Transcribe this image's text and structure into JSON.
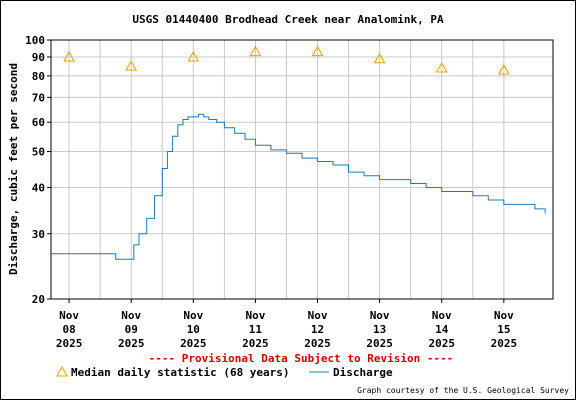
{
  "chart_data": {
    "type": "line",
    "title": "USGS 01440400 Brodhead Creek near Analomink, PA",
    "ylabel": "Discharge, cubic feet per second",
    "xlabel": "",
    "y_scale": "log",
    "ylim": [
      20,
      100
    ],
    "y_ticks": [
      20,
      30,
      40,
      50,
      60,
      70,
      80,
      90,
      100
    ],
    "x_ticks": [
      {
        "date": "2025-11-08",
        "label": [
          "Nov",
          "08",
          "2025"
        ]
      },
      {
        "date": "2025-11-09",
        "label": [
          "Nov",
          "09",
          "2025"
        ]
      },
      {
        "date": "2025-11-10",
        "label": [
          "Nov",
          "10",
          "2025"
        ]
      },
      {
        "date": "2025-11-11",
        "label": [
          "Nov",
          "11",
          "2025"
        ]
      },
      {
        "date": "2025-11-12",
        "label": [
          "Nov",
          "12",
          "2025"
        ]
      },
      {
        "date": "2025-11-13",
        "label": [
          "Nov",
          "13",
          "2025"
        ]
      },
      {
        "date": "2025-11-14",
        "label": [
          "Nov",
          "14",
          "2025"
        ]
      },
      {
        "date": "2025-11-15",
        "label": [
          "Nov",
          "15",
          "2025"
        ]
      }
    ],
    "xlim": [
      "2025-11-07T17:00",
      "2025-11-15T19:00"
    ],
    "grid": true,
    "legend_position": "bottom",
    "series": [
      {
        "name": "Median daily statistic (68 years)",
        "kind": "scatter",
        "marker": "triangle",
        "color": "#e8a000",
        "points": [
          {
            "x": "2025-11-08T00:00",
            "y": 90
          },
          {
            "x": "2025-11-09T00:00",
            "y": 85
          },
          {
            "x": "2025-11-10T00:00",
            "y": 90
          },
          {
            "x": "2025-11-11T00:00",
            "y": 93
          },
          {
            "x": "2025-11-12T00:00",
            "y": 93
          },
          {
            "x": "2025-11-13T00:00",
            "y": 89
          },
          {
            "x": "2025-11-14T00:00",
            "y": 84
          },
          {
            "x": "2025-11-15T00:00",
            "y": 83
          }
        ]
      },
      {
        "name": "Discharge",
        "kind": "line",
        "color": "#1f77b4",
        "points": [
          {
            "x": "2025-11-07T17:00",
            "y": 26.5
          },
          {
            "x": "2025-11-08T18:00",
            "y": 26.5
          },
          {
            "x": "2025-11-08T18:00",
            "y": 25.6
          },
          {
            "x": "2025-11-09T00:00",
            "y": 25.6
          },
          {
            "x": "2025-11-09T01:00",
            "y": 28.0
          },
          {
            "x": "2025-11-09T03:00",
            "y": 30.0
          },
          {
            "x": "2025-11-09T06:00",
            "y": 33.0
          },
          {
            "x": "2025-11-09T09:00",
            "y": 38.0
          },
          {
            "x": "2025-11-09T12:00",
            "y": 45.0
          },
          {
            "x": "2025-11-09T14:00",
            "y": 50.0
          },
          {
            "x": "2025-11-09T16:00",
            "y": 55.0
          },
          {
            "x": "2025-11-09T18:00",
            "y": 59.0
          },
          {
            "x": "2025-11-09T20:00",
            "y": 61.0
          },
          {
            "x": "2025-11-09T22:00",
            "y": 62.0
          },
          {
            "x": "2025-11-10T00:00",
            "y": 62.0
          },
          {
            "x": "2025-11-10T02:00",
            "y": 63.0
          },
          {
            "x": "2025-11-10T04:00",
            "y": 62.0
          },
          {
            "x": "2025-11-10T06:00",
            "y": 61.0
          },
          {
            "x": "2025-11-10T09:00",
            "y": 60.0
          },
          {
            "x": "2025-11-10T12:00",
            "y": 58.0
          },
          {
            "x": "2025-11-10T16:00",
            "y": 56.0
          },
          {
            "x": "2025-11-10T20:00",
            "y": 54.0
          },
          {
            "x": "2025-11-11T00:00",
            "y": 52.0
          },
          {
            "x": "2025-11-11T06:00",
            "y": 50.5
          },
          {
            "x": "2025-11-11T12:00",
            "y": 49.5
          },
          {
            "x": "2025-11-11T18:00",
            "y": 48.0
          },
          {
            "x": "2025-11-12T00:00",
            "y": 47.0
          },
          {
            "x": "2025-11-12T06:00",
            "y": 46.0
          },
          {
            "x": "2025-11-12T12:00",
            "y": 44.0
          },
          {
            "x": "2025-11-12T18:00",
            "y": 43.0
          },
          {
            "x": "2025-11-13T00:00",
            "y": 42.0
          },
          {
            "x": "2025-11-13T12:00",
            "y": 41.0
          },
          {
            "x": "2025-11-13T18:00",
            "y": 40.0
          },
          {
            "x": "2025-11-14T00:00",
            "y": 39.0
          },
          {
            "x": "2025-11-14T12:00",
            "y": 38.0
          },
          {
            "x": "2025-11-14T18:00",
            "y": 37.0
          },
          {
            "x": "2025-11-15T00:00",
            "y": 36.0
          },
          {
            "x": "2025-11-15T12:00",
            "y": 35.0
          },
          {
            "x": "2025-11-15T16:00",
            "y": 34.0
          }
        ]
      }
    ],
    "annotation": "---- Provisional Data Subject to Revision ----",
    "credit": "Graph courtesy of the U.S. Geological Survey"
  },
  "legend": {
    "median_label": "Median daily statistic (68 years)",
    "discharge_label": "Discharge"
  },
  "colors": {
    "grid": "#c8c8c8",
    "axis": "#000000",
    "median": "#e8a000",
    "discharge": "#1f77b4",
    "provisional": "#cc0000"
  }
}
